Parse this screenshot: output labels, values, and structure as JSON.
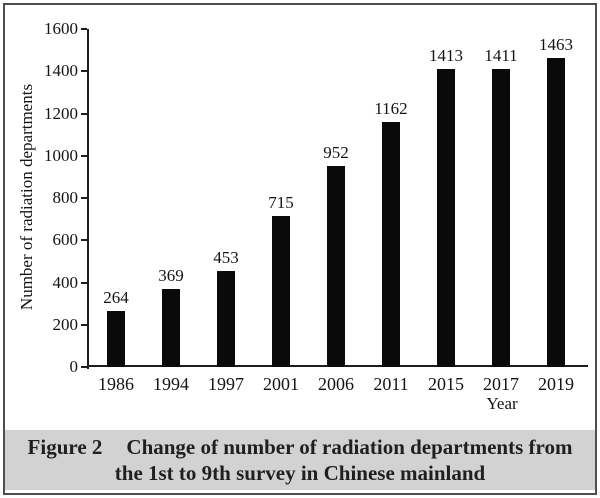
{
  "figure": {
    "caption": {
      "figure_label": "Figure 2",
      "line1": "Change of number of radiation departments from",
      "line2": "the 1st to 9th survey in Chinese mainland"
    },
    "caption_background": "#d2d2d2",
    "border_color": "#4f4f4f"
  },
  "chart_data": {
    "type": "bar",
    "title": "",
    "categories": [
      "1986",
      "1994",
      "1997",
      "2001",
      "2006",
      "2011",
      "2015",
      "2017",
      "2019"
    ],
    "values": [
      264,
      369,
      453,
      715,
      952,
      1162,
      1413,
      1411,
      1463
    ],
    "data_labels": [
      264,
      369,
      453,
      715,
      952,
      1162,
      1413,
      1411,
      1463
    ],
    "xlabel": "Year",
    "ylabel": "Number of radiation departments",
    "ylim": [
      0,
      1600
    ],
    "ytick_step": 200,
    "yticks": [
      0,
      200,
      400,
      600,
      800,
      1000,
      1200,
      1400,
      1600
    ],
    "bar_color": "#0a0a0a",
    "axis_color": "#1d1d1d",
    "grid": false,
    "legend": null
  }
}
